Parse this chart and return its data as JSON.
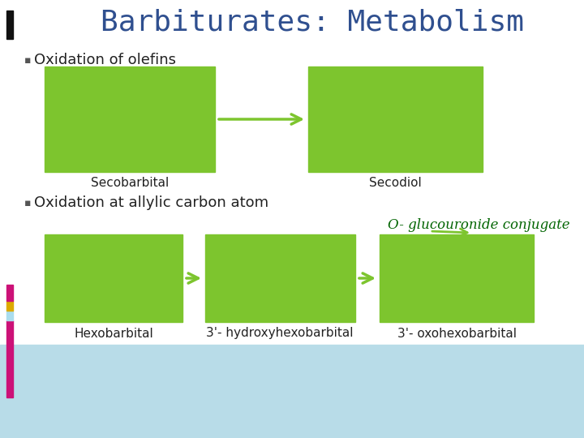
{
  "title": "Barbiturates: Metabolism",
  "title_color": "#2F4F8F",
  "title_fontsize": 26,
  "bg_top_color": "#FFFFFF",
  "bg_bottom_color": "#B8DCE8",
  "left_bar_black_color": "#111111",
  "left_bar_pink_color": "#CC1177",
  "left_bar_gold_color": "#DDAA00",
  "left_bar_blue_color": "#AADDEE",
  "bullet1": "Oxidation of olefins",
  "bullet2": "Oxidation at allylic carbon atom",
  "bullet_fontsize": 13,
  "bullet_color": "#222222",
  "green_box_color": "#7DC52E",
  "label_seco1": "Secobarbital",
  "label_seco2": "Secodiol",
  "label_hex1": "Hexobarbital",
  "label_hex2": "3'- hydroxyhexobarbital",
  "label_hex3": "3'- oxohexobarbital",
  "glucouronide_label": "O- glucouronide conjugate",
  "glucouronide_color": "#006400",
  "arrow_color": "#7DC52E",
  "label_fontsize": 11,
  "glucouronide_fontsize": 12
}
